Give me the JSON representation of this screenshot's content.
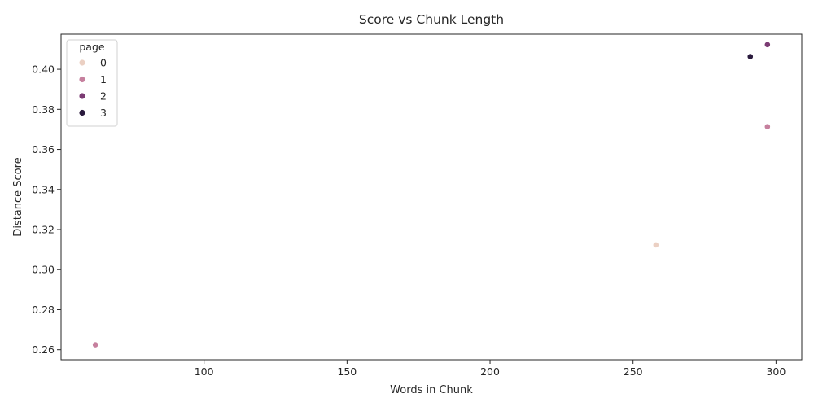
{
  "chart_data": {
    "type": "scatter",
    "title": "Score vs Chunk Length",
    "xlabel": "Words in Chunk",
    "ylabel": "Distance Score",
    "xlim": [
      50,
      309
    ],
    "ylim": [
      0.255,
      0.4175
    ],
    "xticks": [
      100,
      150,
      200,
      250,
      300
    ],
    "yticks": [
      0.26,
      0.28,
      0.3,
      0.32,
      0.34,
      0.36,
      0.38,
      0.4
    ],
    "xtick_labels": [
      "100",
      "150",
      "200",
      "250",
      "300"
    ],
    "ytick_labels": [
      "0.26",
      "0.28",
      "0.30",
      "0.32",
      "0.34",
      "0.36",
      "0.38",
      "0.40"
    ],
    "grid": false,
    "legend": {
      "title": "page",
      "placement": "top-left",
      "entries": [
        {
          "label": "0",
          "color": "#ebd0c3"
        },
        {
          "label": "1",
          "color": "#c6809e"
        },
        {
          "label": "2",
          "color": "#7b3b73"
        },
        {
          "label": "3",
          "color": "#2a1a3d"
        }
      ]
    },
    "points": [
      {
        "x": 62,
        "y": 0.2625,
        "page": 1
      },
      {
        "x": 258,
        "y": 0.3123,
        "page": 0
      },
      {
        "x": 291,
        "y": 0.4063,
        "page": 3
      },
      {
        "x": 297,
        "y": 0.3713,
        "page": 1
      },
      {
        "x": 297,
        "y": 0.4123,
        "page": 2
      }
    ]
  }
}
